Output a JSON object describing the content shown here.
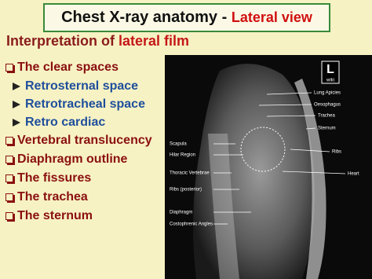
{
  "title": {
    "main": "Chest X-ray anatomy -",
    "highlight": "Lateral view"
  },
  "subtitle": {
    "main": "Interpretation of",
    "highlight": "lateral film"
  },
  "list": [
    {
      "text": "The clear spaces",
      "subitems": [
        "Retrosternal space",
        "Retrotracheal space",
        "Retro cardiac"
      ]
    },
    {
      "text": "Vertebral translucency"
    },
    {
      "text": "Diaphragm outline"
    },
    {
      "text": "The fissures"
    },
    {
      "text": "The trachea"
    },
    {
      "text": "The sternum"
    }
  ],
  "image": {
    "logo": {
      "letter": "L",
      "text": "wiki"
    },
    "labels_right": [
      "Lung Apicies",
      "Oesophagus",
      "Trachea",
      "Sternum",
      "Ribs",
      "Heart"
    ],
    "labels_left": [
      "Scapula",
      "Hilar Region",
      "Thoracic Vertebrae",
      "Ribs (posterior)",
      "Diaphragm",
      "Costophrenic Angles"
    ]
  }
}
